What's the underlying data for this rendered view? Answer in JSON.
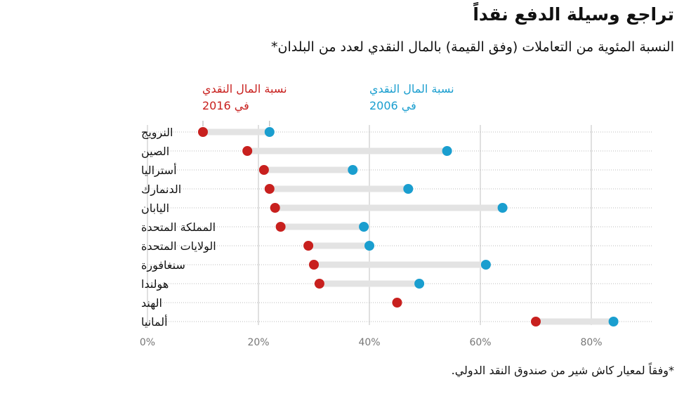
{
  "title": "تراجع وسيلة الدفع نقداً",
  "subtitle": "النسبة المئوية من التعاملات (وفق القيمة) بالمال النقدي لعدد من البلدان*",
  "footnote": "*وفقاً لمعيار كاش شير من صندوق النقد الدولي.",
  "chart_data": {
    "type": "dumbbell",
    "categories": [
      "النرويج",
      "الصين",
      "أستراليا",
      "الدنمارك",
      "اليابان",
      "المملكة المتحدة",
      "الولايات المتحدة",
      "سنغافورة",
      "هولندا",
      "الهند",
      "ألمانيا"
    ],
    "series": [
      {
        "name": "نسبة المال النقدي في 2016",
        "line1": "نسبة المال النقدي",
        "line2": "في 2016",
        "color": "#c8201e",
        "values": [
          10,
          18,
          21,
          22,
          23,
          24,
          29,
          30,
          31,
          45,
          70
        ]
      },
      {
        "name": "نسبة المال النقدي في 2006",
        "line1": "نسبة المال النقدي",
        "line2": "في 2006",
        "color": "#1a9ecf",
        "values": [
          22,
          54,
          37,
          47,
          64,
          39,
          40,
          61,
          49,
          null,
          84
        ]
      }
    ],
    "xlim": [
      0,
      90
    ],
    "xticks": [
      0,
      20,
      40,
      60,
      80
    ],
    "xtick_labels": [
      "0%",
      "20%",
      "40%",
      "60%",
      "80%"
    ]
  }
}
